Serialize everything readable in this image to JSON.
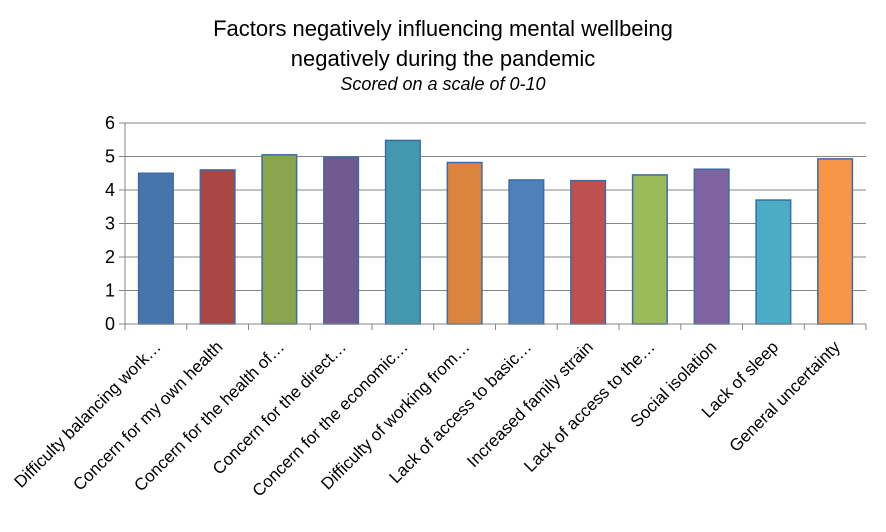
{
  "chart_data": {
    "type": "bar",
    "title": "Factors negatively influencing mental wellbeing",
    "title_line2": "negatively during the pandemic",
    "subtitle": "Scored on a scale of 0-10",
    "categories": [
      "Difficulty balancing work…",
      "Concern for my own health",
      "Concern for the health of…",
      "Concern for the direct…",
      "Concern for the economic…",
      "Difficulty of working from…",
      "Lack of access to basic…",
      "Increased family strain",
      "Lack of access to the…",
      "Social isolation",
      "Lack of sleep",
      "General uncertainty"
    ],
    "values": [
      4.5,
      4.6,
      5.05,
      4.98,
      5.48,
      4.82,
      4.3,
      4.28,
      4.45,
      4.62,
      3.7,
      4.93
    ],
    "colors": [
      "#4674AB",
      "#AA4744",
      "#89A54E",
      "#71588F",
      "#4198AF",
      "#DB843D",
      "#4F81BD",
      "#C0504D",
      "#9BBB59",
      "#8064A2",
      "#4BACC6",
      "#F79646"
    ],
    "ylim": [
      0,
      6
    ],
    "yticks": [
      "0",
      "1",
      "2",
      "3",
      "4",
      "5",
      "6"
    ],
    "grid": true,
    "legend": "none"
  }
}
